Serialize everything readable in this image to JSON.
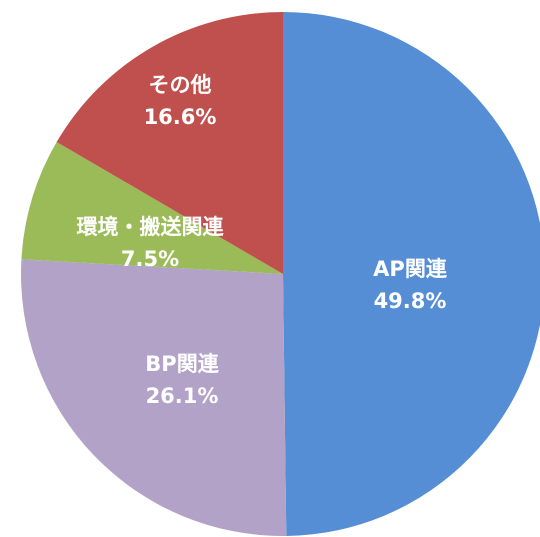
{
  "chart_data": {
    "type": "pie",
    "categories": [
      "AP関連",
      "BP関連",
      "環境・搬送関連",
      "その他"
    ],
    "values": [
      49.8,
      26.1,
      7.5,
      16.6
    ],
    "value_labels": [
      "49.8%",
      "26.1%",
      "7.5%",
      "16.6%"
    ],
    "colors": [
      "#558ed5",
      "#b3a2c7",
      "#9bbb59",
      "#c0504d"
    ]
  }
}
